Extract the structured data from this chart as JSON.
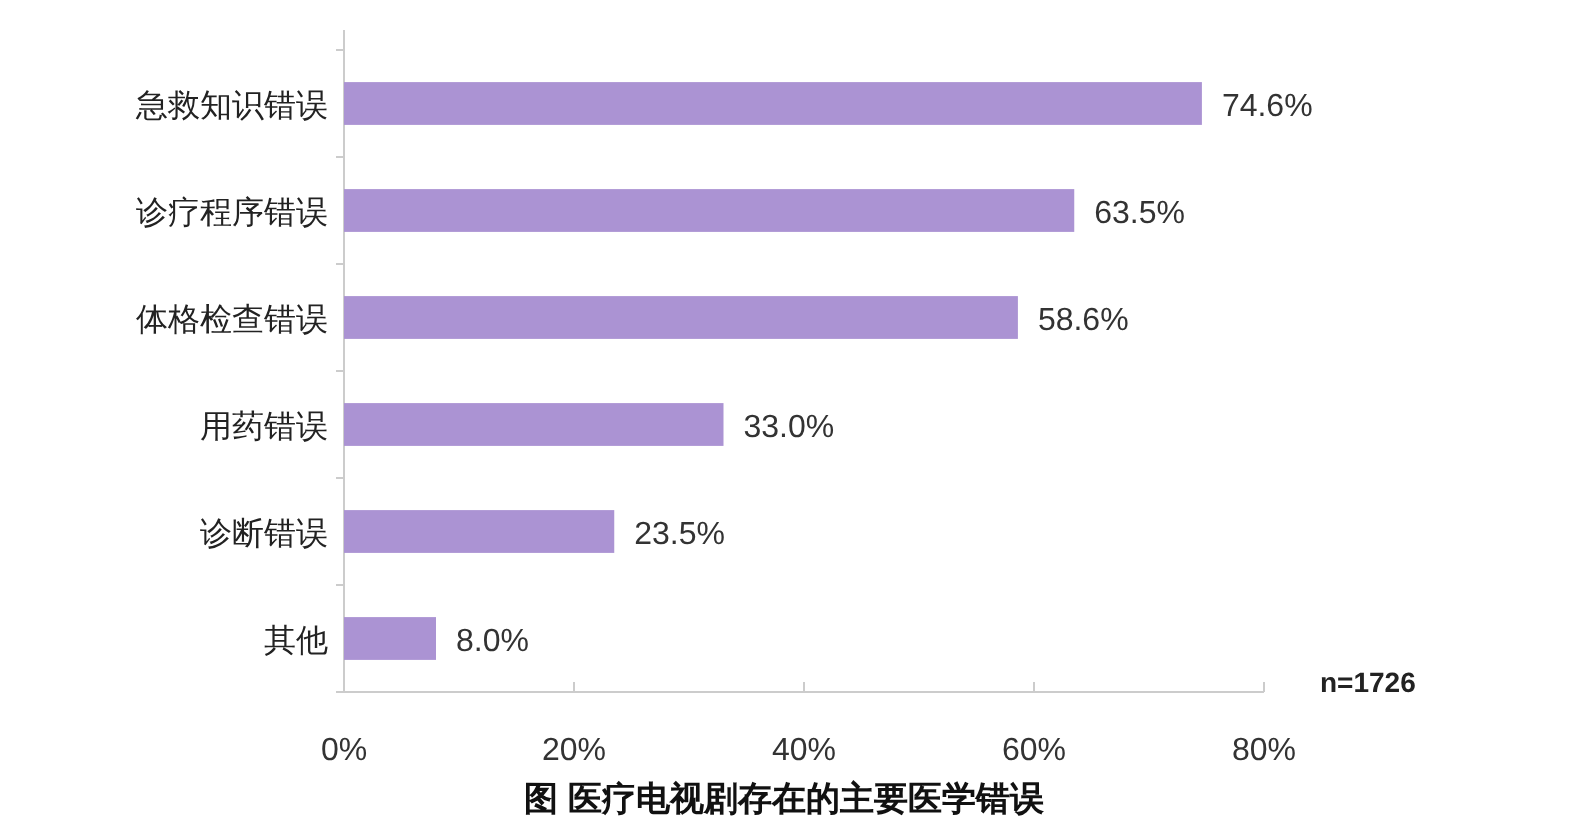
{
  "chart_data": {
    "type": "bar",
    "orientation": "horizontal",
    "title": "图 医疗电视剧存在的主要医学错误",
    "categories": [
      "急救知识错误",
      "诊疗程序错误",
      "体格检查错误",
      "用药错误",
      "诊断错误",
      "其他"
    ],
    "values": [
      74.6,
      63.5,
      58.6,
      33.0,
      23.5,
      8.0
    ],
    "value_labels": [
      "74.6%",
      "63.5%",
      "58.6%",
      "33.0%",
      "23.5%",
      "8.0%"
    ],
    "color": "#ab93d3",
    "xlim": [
      0,
      80
    ],
    "xticks": [
      {
        "value": 0,
        "label": "0%"
      },
      {
        "value": 20,
        "label": "20%"
      },
      {
        "value": 40,
        "label": "40%"
      },
      {
        "value": 60,
        "label": "60%"
      },
      {
        "value": 80,
        "label": "80%"
      }
    ],
    "annotations": [
      "n=1726"
    ],
    "grid": false
  }
}
